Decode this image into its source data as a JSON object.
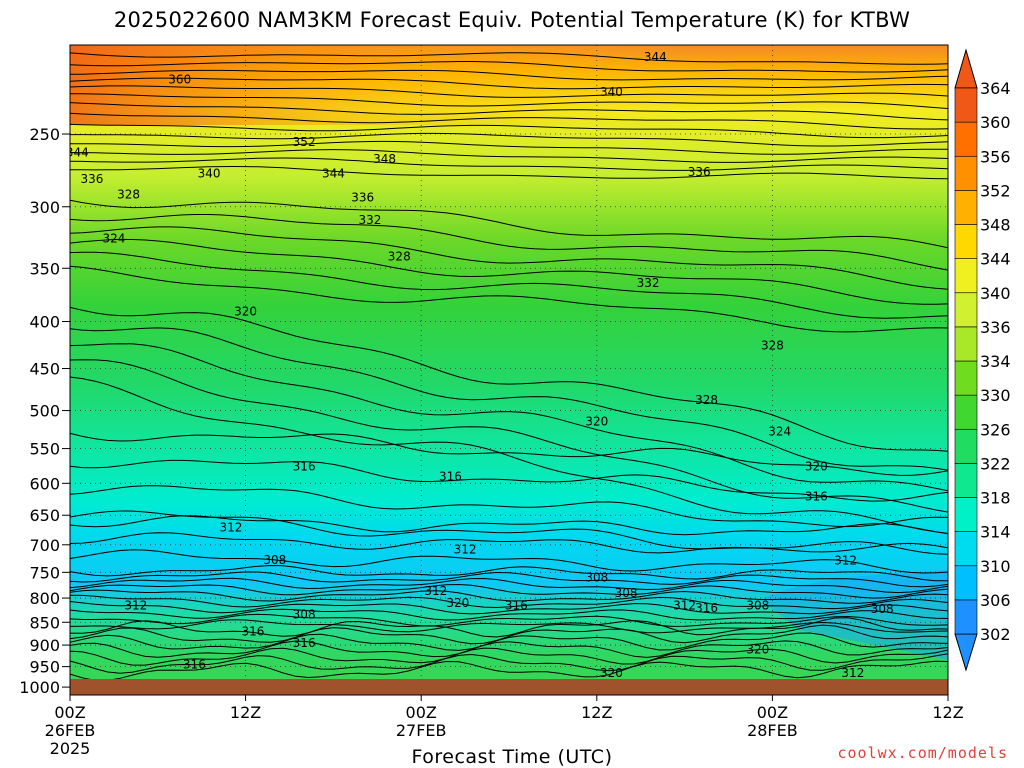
{
  "chart_data": {
    "type": "heatmap",
    "title": "2025022600 NAM3KM Forecast Equiv. Potential Temperature (K) for KTBW",
    "xlabel": "Forecast Time (UTC)",
    "ylabel": "",
    "watermark": "coolwx.com/models",
    "x_ticks": [
      {
        "hour": 0,
        "lines": [
          "00Z",
          "26FEB",
          "2025"
        ]
      },
      {
        "hour": 12,
        "lines": [
          "12Z"
        ]
      },
      {
        "hour": 24,
        "lines": [
          "00Z",
          "27FEB"
        ]
      },
      {
        "hour": 36,
        "lines": [
          "12Z"
        ]
      },
      {
        "hour": 48,
        "lines": [
          "00Z",
          "28FEB"
        ]
      },
      {
        "hour": 60,
        "lines": [
          "12Z"
        ]
      }
    ],
    "xlim": [
      0,
      60
    ],
    "y_ticks": [
      250,
      300,
      350,
      400,
      450,
      500,
      550,
      600,
      650,
      700,
      750,
      800,
      850,
      900,
      950,
      1000
    ],
    "ylim": [
      1020,
      200
    ],
    "yscale": "log",
    "grid": true,
    "colorbar": {
      "levels": [
        302,
        306,
        310,
        314,
        318,
        322,
        326,
        330,
        334,
        336,
        340,
        344,
        348,
        352,
        356,
        360,
        364
      ],
      "labels": [
        "302",
        "306",
        "310",
        "314",
        "318",
        "322",
        "326",
        "330",
        "334",
        "336",
        "340",
        "344",
        "348",
        "352",
        "356",
        "360",
        "364"
      ],
      "colors": [
        "#1e90ff",
        "#00bfff",
        "#00dcef",
        "#00f0c8",
        "#10e890",
        "#20dc60",
        "#40d830",
        "#70dc20",
        "#a8e828",
        "#d0f030",
        "#f0f020",
        "#ffd800",
        "#ffb000",
        "#ff9000",
        "#ff7000",
        "#f05818"
      ]
    },
    "contour_labels": [
      {
        "hour": 7.5,
        "p": 218,
        "text": "360"
      },
      {
        "hour": 0.5,
        "p": 262,
        "text": "344"
      },
      {
        "hour": 1.5,
        "p": 280,
        "text": "336"
      },
      {
        "hour": 4,
        "p": 291,
        "text": "328"
      },
      {
        "hour": 9.5,
        "p": 276,
        "text": "340"
      },
      {
        "hour": 16,
        "p": 255,
        "text": "352"
      },
      {
        "hour": 21.5,
        "p": 266,
        "text": "348"
      },
      {
        "hour": 18,
        "p": 276,
        "text": "344"
      },
      {
        "hour": 20,
        "p": 293,
        "text": "336"
      },
      {
        "hour": 20.5,
        "p": 310,
        "text": "332"
      },
      {
        "hour": 22.5,
        "p": 340,
        "text": "328"
      },
      {
        "hour": 3,
        "p": 325,
        "text": "324"
      },
      {
        "hour": 12,
        "p": 390,
        "text": "320"
      },
      {
        "hour": 40,
        "p": 206,
        "text": "344"
      },
      {
        "hour": 37,
        "p": 225,
        "text": "340"
      },
      {
        "hour": 43,
        "p": 275,
        "text": "336"
      },
      {
        "hour": 39.5,
        "p": 363,
        "text": "332"
      },
      {
        "hour": 48,
        "p": 425,
        "text": "328"
      },
      {
        "hour": 43.5,
        "p": 487,
        "text": "328"
      },
      {
        "hour": 48.5,
        "p": 527,
        "text": "324"
      },
      {
        "hour": 36,
        "p": 514,
        "text": "320"
      },
      {
        "hour": 51,
        "p": 575,
        "text": "320"
      },
      {
        "hour": 16,
        "p": 575,
        "text": "316"
      },
      {
        "hour": 26,
        "p": 590,
        "text": "316"
      },
      {
        "hour": 51,
        "p": 620,
        "text": "316"
      },
      {
        "hour": 11,
        "p": 670,
        "text": "312"
      },
      {
        "hour": 27,
        "p": 708,
        "text": "312"
      },
      {
        "hour": 53,
        "p": 728,
        "text": "312"
      },
      {
        "hour": 14,
        "p": 727,
        "text": "308"
      },
      {
        "hour": 36,
        "p": 760,
        "text": "308"
      },
      {
        "hour": 38,
        "p": 790,
        "text": "308"
      },
      {
        "hour": 4.5,
        "p": 815,
        "text": "312"
      },
      {
        "hour": 25,
        "p": 786,
        "text": "312"
      },
      {
        "hour": 26.5,
        "p": 810,
        "text": "320"
      },
      {
        "hour": 16,
        "p": 834,
        "text": "308"
      },
      {
        "hour": 30.5,
        "p": 815,
        "text": "316"
      },
      {
        "hour": 42,
        "p": 815,
        "text": "312"
      },
      {
        "hour": 43.5,
        "p": 820,
        "text": "316"
      },
      {
        "hour": 47,
        "p": 815,
        "text": "308"
      },
      {
        "hour": 55.5,
        "p": 822,
        "text": "308"
      },
      {
        "hour": 12.5,
        "p": 870,
        "text": "316"
      },
      {
        "hour": 16,
        "p": 895,
        "text": "316"
      },
      {
        "hour": 47,
        "p": 910,
        "text": "320"
      },
      {
        "hour": 37,
        "p": 965,
        "text": "320"
      },
      {
        "hour": 8.5,
        "p": 945,
        "text": "316"
      },
      {
        "hour": 53.5,
        "p": 965,
        "text": "312"
      }
    ]
  }
}
